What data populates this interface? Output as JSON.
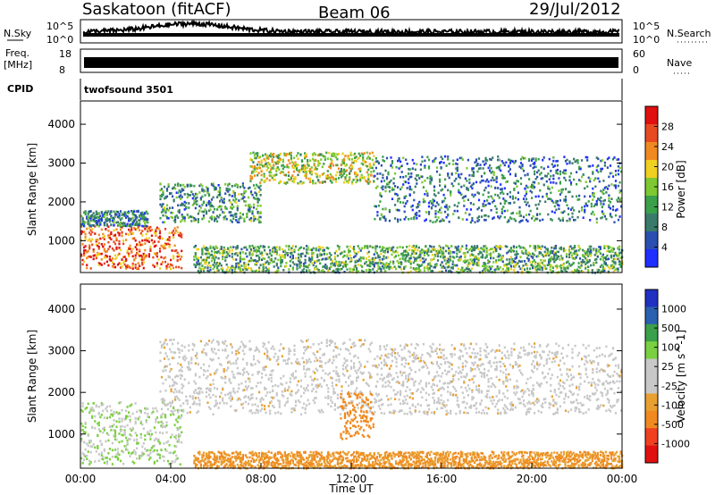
{
  "header": {
    "radar": "Saskatoon (fitACF)",
    "beam": "Beam 06",
    "date": "29/Jul/2012"
  },
  "strips": {
    "nsky": {
      "left_label": "N.Sky",
      "right_label": "N.Search",
      "ticks_top": "10^5",
      "ticks_bottom": "10^0"
    },
    "freq": {
      "left_label": "Freq.",
      "left_unit": "[MHz]",
      "ticks_left": [
        "18",
        "8"
      ],
      "right_label": "Nave",
      "ticks_right": [
        "60",
        "0"
      ]
    },
    "cpid": {
      "label": "CPID",
      "value": "twofsound 3501"
    }
  },
  "colors": {
    "power_scale": [
      "#1f2fff",
      "#2a4fb0",
      "#3a7a6a",
      "#3aa04a",
      "#7ec832",
      "#f0d020",
      "#f08a20",
      "#e84a20",
      "#e01010"
    ],
    "velocity_scale": [
      "#e01010",
      "#f04020",
      "#f08a20",
      "#e8a030",
      "#c8c8c8",
      "#c8c8c8",
      "#7ad040",
      "#3aa04a",
      "#2a60b0",
      "#2030c0"
    ]
  },
  "chart_data": [
    {
      "type": "heatmap",
      "title": "",
      "xlabel": "",
      "ylabel": "Slant Range [km]",
      "x_ticks": [
        "00:00",
        "04:00",
        "08:00",
        "12:00",
        "16:00",
        "20:00",
        "00:00"
      ],
      "y_ticks": [
        "1000",
        "2000",
        "3000",
        "4000"
      ],
      "xlim": [
        "00:00",
        "24:00"
      ],
      "ylim": [
        180,
        4600
      ],
      "colorbar": {
        "label": "Power [dB]",
        "ticks": [
          "4",
          "8",
          "12",
          "16",
          "20",
          "24",
          "28"
        ],
        "range": [
          0,
          30
        ]
      },
      "echo_regions": [
        {
          "t_start": 0.0,
          "t_end": 4.5,
          "r_min": 300,
          "r_max": 1400,
          "power": 24
        },
        {
          "t_start": 0.0,
          "t_end": 3.0,
          "r_min": 1400,
          "r_max": 1800,
          "power": 8
        },
        {
          "t_start": 3.5,
          "t_end": 8.0,
          "r_min": 1500,
          "r_max": 2500,
          "power": 10
        },
        {
          "t_start": 7.5,
          "t_end": 13.0,
          "r_min": 2500,
          "r_max": 3300,
          "power": 16
        },
        {
          "t_start": 13.0,
          "t_end": 24.0,
          "r_min": 1500,
          "r_max": 3200,
          "power": 8
        },
        {
          "t_start": 5.0,
          "t_end": 24.0,
          "r_min": 200,
          "r_max": 900,
          "power": 12
        }
      ]
    },
    {
      "type": "heatmap",
      "title": "",
      "xlabel": "Time UT",
      "ylabel": "Slant Range [km]",
      "x_ticks": [
        "00:00",
        "04:00",
        "08:00",
        "12:00",
        "16:00",
        "20:00",
        "00:00"
      ],
      "y_ticks": [
        "1000",
        "2000",
        "3000",
        "4000"
      ],
      "xlim": [
        "00:00",
        "24:00"
      ],
      "ylim": [
        180,
        4600
      ],
      "colorbar": {
        "label": "Velocity [m s^-1]",
        "ticks": [
          "1000",
          "500",
          "100",
          "25",
          "-25",
          "-100",
          "-500",
          "-1000"
        ]
      },
      "echo_regions": [
        {
          "t_start": 0.0,
          "t_end": 4.5,
          "r_min": 300,
          "r_max": 1800,
          "velocity": 100
        },
        {
          "t_start": 3.5,
          "t_end": 13.0,
          "r_min": 1500,
          "r_max": 3300,
          "velocity": 0
        },
        {
          "t_start": 11.5,
          "t_end": 13.0,
          "r_min": 900,
          "r_max": 2000,
          "velocity": -200
        },
        {
          "t_start": 13.0,
          "t_end": 24.0,
          "r_min": 1500,
          "r_max": 3200,
          "velocity": 0
        },
        {
          "t_start": 5.0,
          "t_end": 24.0,
          "r_min": 200,
          "r_max": 600,
          "velocity": -100
        }
      ]
    }
  ]
}
